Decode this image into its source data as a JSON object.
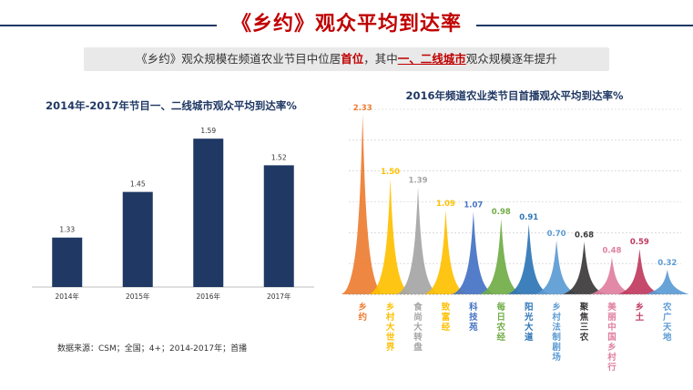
{
  "header": {
    "title": "《乡约》观众平均到达率",
    "subtitle_parts": [
      "《乡约》观众规模在频道农业节目中位居",
      "首位",
      "，其中",
      "一、二线城市",
      "观众规模逐年提升"
    ]
  },
  "source_note": "数据来源：CSM；全国；4+；2014-2017年；首播",
  "chart_data": [
    {
      "type": "bar",
      "title": "2014年-2017年节目一、二线城市观众平均到达率%",
      "categories": [
        "2014年",
        "2015年",
        "2016年",
        "2017年"
      ],
      "values": [
        1.33,
        1.45,
        1.59,
        1.52
      ],
      "value_labels": [
        "1.33",
        "1.45",
        "1.59",
        "1.52"
      ],
      "ylim": [
        1.2,
        1.6
      ],
      "color": "#1f3864",
      "grid": false
    },
    {
      "type": "area",
      "title": "2016年频道农业类节目首播观众平均到达率%",
      "categories": [
        "乡约",
        "乡村大世界",
        "食尚大转盘",
        "致富经",
        "科技苑",
        "每日农经",
        "阳光大道",
        "乡村法制剧场",
        "聚焦三农",
        "美丽中国乡村行",
        "乡土",
        "农广天地"
      ],
      "values": [
        2.33,
        1.5,
        1.39,
        1.09,
        1.07,
        0.98,
        0.91,
        0.7,
        0.68,
        0.48,
        0.59,
        0.32
      ],
      "value_labels": [
        "2.33",
        "1.50",
        "1.39",
        "1.09",
        "1.07",
        "0.98",
        "0.91",
        "0.70",
        "0.68",
        "0.48",
        "0.59",
        "0.32"
      ],
      "colors": [
        "#ed7d31",
        "#ffc000",
        "#a5a5a5",
        "#ffc000",
        "#4472c4",
        "#70ad47",
        "#2e75b6",
        "#5b9bd5",
        "#3b3838",
        "#e07fa0",
        "#c0395e",
        "#5b9bd5"
      ],
      "ylim": [
        0,
        2.4
      ],
      "grid": true
    }
  ]
}
